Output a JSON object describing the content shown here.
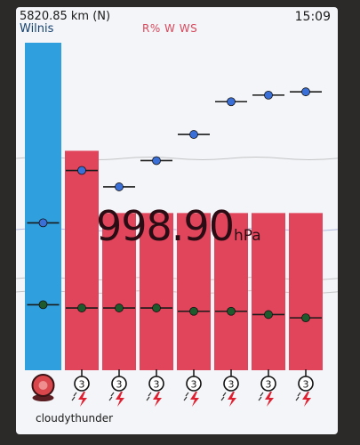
{
  "header": {
    "distance": "5820.85 km (N)",
    "location": "Wilnis",
    "legend": "R% W WS",
    "time": "15:09"
  },
  "pressure": {
    "value": "998.90",
    "unit": "hPa"
  },
  "current": {
    "condition": "cloudythunder",
    "icon": "cloudy-thunder-icon"
  },
  "forecast_icons": [
    "thunder-3-icon",
    "thunder-3-icon",
    "thunder-3-icon",
    "thunder-3-icon",
    "thunder-3-icon",
    "thunder-3-icon",
    "thunder-3-icon"
  ],
  "forecast_icon_label": "3",
  "colors": {
    "current_bar": "#2f9fdd",
    "forecast_bar": "#e1455c",
    "top_marker": "#3b6fd8",
    "bottom_marker": "#1e5a2c",
    "line": "#1a1a1a"
  },
  "chart_data": {
    "type": "bar",
    "bar_ylim": [
      0,
      100
    ],
    "bars": [
      100,
      67,
      48,
      48,
      48,
      48,
      48,
      48
    ],
    "top_markers": [
      45,
      61,
      56,
      64,
      72,
      82,
      84,
      85
    ],
    "bottom_markers": [
      20,
      19,
      19,
      19,
      18,
      18,
      17,
      16
    ]
  }
}
